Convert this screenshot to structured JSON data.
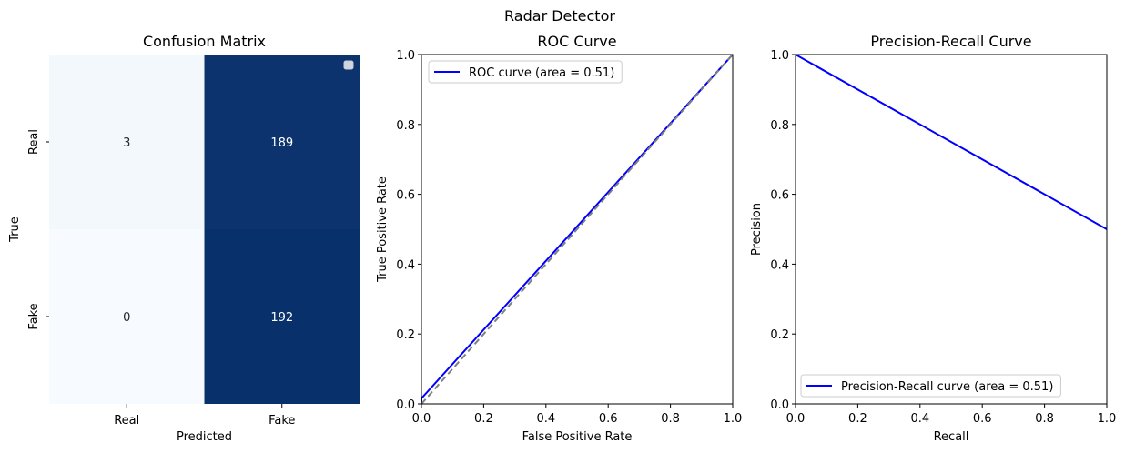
{
  "figure": {
    "suptitle": "Radar Detector"
  },
  "chart_data": [
    {
      "type": "heatmap",
      "title": "Confusion Matrix",
      "xlabel": "Predicted",
      "ylabel": "True",
      "x_categories": [
        "Real",
        "Fake"
      ],
      "y_categories": [
        "Real",
        "Fake"
      ],
      "values": [
        [
          3,
          189
        ],
        [
          0,
          192
        ]
      ],
      "colormap": {
        "low": "#f7fbff",
        "high": "#08306b"
      },
      "legend": {
        "placement": "upper right",
        "entries": []
      }
    },
    {
      "type": "line",
      "title": "ROC Curve",
      "xlabel": "False Positive Rate",
      "ylabel": "True Positive Rate",
      "xlim": [
        0,
        1
      ],
      "ylim": [
        0,
        1
      ],
      "xticks": [
        "0.0",
        "0.2",
        "0.4",
        "0.6",
        "0.8",
        "1.0"
      ],
      "yticks": [
        "0.0",
        "0.2",
        "0.4",
        "0.6",
        "0.8",
        "1.0"
      ],
      "legend": {
        "placement": "upper left"
      },
      "series": [
        {
          "name": "ROC curve (area = 0.51)",
          "color": "#0000ff",
          "style": "solid",
          "x": [
            0,
            0.0,
            1.0
          ],
          "y": [
            0,
            0.0156,
            1.0
          ]
        },
        {
          "color": "#808080",
          "style": "dashed",
          "x": [
            0,
            1
          ],
          "y": [
            0,
            1
          ]
        }
      ]
    },
    {
      "type": "line",
      "title": "Precision-Recall Curve",
      "xlabel": "Recall",
      "ylabel": "Precision",
      "xlim": [
        0,
        1
      ],
      "ylim": [
        0,
        1
      ],
      "xticks": [
        "0.0",
        "0.2",
        "0.4",
        "0.6",
        "0.8",
        "1.0"
      ],
      "yticks": [
        "0.0",
        "0.2",
        "0.4",
        "0.6",
        "0.8",
        "1.0"
      ],
      "legend": {
        "placement": "lower left"
      },
      "series": [
        {
          "name": "Precision-Recall curve (area = 0.51)",
          "color": "#0000ff",
          "style": "solid",
          "x": [
            0,
            1.0
          ],
          "y": [
            1.0,
            0.5
          ]
        }
      ]
    }
  ]
}
